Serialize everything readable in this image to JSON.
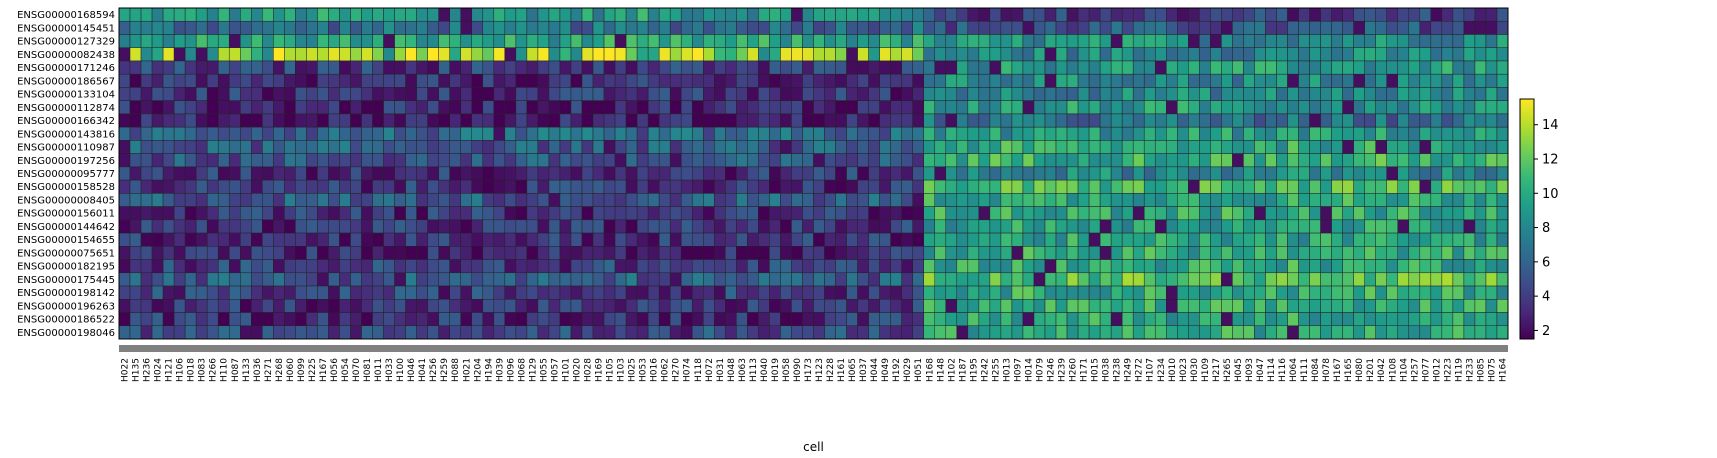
{
  "chart_data": {
    "type": "heatmap",
    "title": "",
    "xlabel": "cell",
    "ylabel": "",
    "genes": [
      "ENSG00000168594",
      "ENSG00000145451",
      "ENSG00000127329",
      "ENSG00000082438",
      "ENSG00000171246",
      "ENSG00000186567",
      "ENSG00000133104",
      "ENSG00000112874",
      "ENSG00000166342",
      "ENSG00000143816",
      "ENSG00000110987",
      "ENSG00000197256",
      "ENSG00000095777",
      "ENSG00000158528",
      "ENSG00000008405",
      "ENSG00000156011",
      "ENSG00000144642",
      "ENSG00000154655",
      "ENSG00000075651",
      "ENSG00000182195",
      "ENSG00000175445",
      "ENSG00000198142",
      "ENSG00000196263",
      "ENSG00000186522",
      "ENSG00000198046"
    ],
    "cells": [
      "H022",
      "H135",
      "H236",
      "H024",
      "H121",
      "H106",
      "H018",
      "H083",
      "H266",
      "H110",
      "H087",
      "H133",
      "H036",
      "H271",
      "H268",
      "H060",
      "H099",
      "H225",
      "H167",
      "H056",
      "H054",
      "H070",
      "H081",
      "H011",
      "H033",
      "H100",
      "H046",
      "H041",
      "H256",
      "H259",
      "H088",
      "H021",
      "H204",
      "H194",
      "H039",
      "H096",
      "H068",
      "H129",
      "H055",
      "H057",
      "H101",
      "H020",
      "H028",
      "H169",
      "H105",
      "H103",
      "H025",
      "H053",
      "H016",
      "H062",
      "H270",
      "H074",
      "H118",
      "H072",
      "H031",
      "H048",
      "H063",
      "H113",
      "H040",
      "H019",
      "H058",
      "H090",
      "H173",
      "H123",
      "H228",
      "H161",
      "H065",
      "H037",
      "H044",
      "H049",
      "H192",
      "H029",
      "H051",
      "H168",
      "H148",
      "H102",
      "H187",
      "H195",
      "H242",
      "H255",
      "H013",
      "H097",
      "H014",
      "H079",
      "H246",
      "H239",
      "H260",
      "H171",
      "H015",
      "H038",
      "H238",
      "H249",
      "H272",
      "H107",
      "H234",
      "H010",
      "H023",
      "H030",
      "H109",
      "H217",
      "H265",
      "H045",
      "H093",
      "H047",
      "H114",
      "H116",
      "H064",
      "H111",
      "H084",
      "H078",
      "H167",
      "H165",
      "H080",
      "H201",
      "H042",
      "H108",
      "H104",
      "H257",
      "H077",
      "H012",
      "H223",
      "H119",
      "H233",
      "H085",
      "H075",
      "H164"
    ],
    "colorbar": {
      "ticks": [
        "2",
        "4",
        "6",
        "8",
        "10",
        "12",
        "14"
      ],
      "vmin": 1.5,
      "vmax": 15.5,
      "colormap": "viridis"
    },
    "values_description": "Expression values per gene (rows) by cell (columns); early cells mostly low (2-6), later cells mostly mid-high (8-13); ENSG00000082438 row high (~14) in first ~70 cells."
  }
}
